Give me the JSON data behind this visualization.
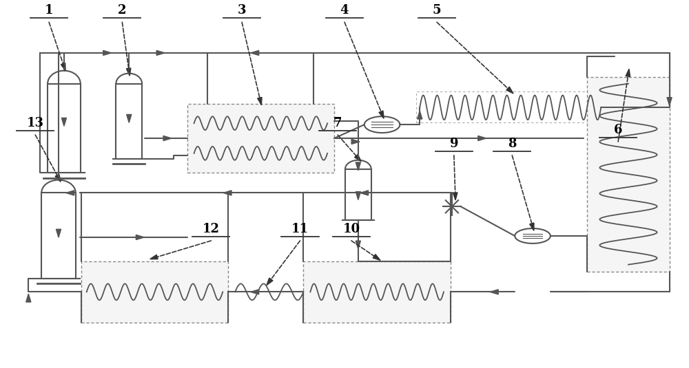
{
  "bg_color": "#ffffff",
  "lc": "#555555",
  "dc": "#333333",
  "figsize": [
    10.0,
    5.35
  ],
  "dpi": 100
}
